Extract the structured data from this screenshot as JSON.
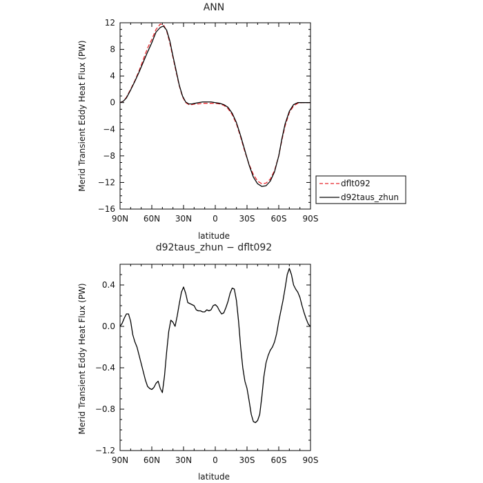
{
  "chart_data": [
    {
      "type": "line",
      "title": "ANN",
      "xlabel": "latitude",
      "ylabel": "Merid Transient Eddy Heat Flux (PW)",
      "xlim": [
        90,
        -90
      ],
      "ylim": [
        -16,
        12
      ],
      "x_ticks": [
        90,
        60,
        30,
        0,
        -30,
        -60,
        -90
      ],
      "x_tick_labels": [
        "90N",
        "60N",
        "30N",
        "0",
        "30S",
        "60S",
        "90S"
      ],
      "y_ticks": [
        -16,
        -12,
        -8,
        -4,
        0,
        4,
        8,
        12
      ],
      "y_tick_labels": [
        "−16",
        "−12",
        "−8",
        "−4",
        "0",
        "4",
        "8",
        "12"
      ],
      "grid": false,
      "legend_position": "outside-right",
      "series": [
        {
          "name": "dflt092",
          "color": "#e8262b",
          "dash": "dashed",
          "x": [
            90,
            87,
            84,
            80,
            76,
            72,
            68,
            64,
            60,
            56,
            52,
            49,
            46,
            43,
            40,
            37,
            34,
            31,
            28,
            25,
            22,
            19,
            16,
            12,
            8,
            4,
            0,
            -4,
            -8,
            -12,
            -16,
            -20,
            -24,
            -28,
            -32,
            -36,
            -40,
            -44,
            -48,
            -52,
            -56,
            -60,
            -63,
            -66,
            -70,
            -74,
            -78,
            -82,
            -86,
            -90
          ],
          "y": [
            0,
            0.2,
            0.8,
            2.0,
            3.3,
            4.8,
            6.5,
            8.2,
            9.5,
            11.0,
            11.8,
            11.7,
            10.8,
            9.0,
            6.8,
            4.6,
            2.5,
            0.9,
            0.0,
            -0.3,
            -0.3,
            -0.2,
            -0.2,
            -0.1,
            -0.1,
            -0.1,
            -0.1,
            -0.2,
            -0.4,
            -0.9,
            -1.8,
            -3.2,
            -5.2,
            -7.4,
            -9.3,
            -10.8,
            -11.8,
            -12.2,
            -12.1,
            -11.5,
            -10.2,
            -8.0,
            -5.6,
            -3.5,
            -1.5,
            -0.5,
            -0.1,
            0,
            0,
            0
          ]
        },
        {
          "name": "d92taus_zhun",
          "color": "#000000",
          "dash": "solid",
          "x": [
            90,
            87,
            84,
            80,
            76,
            72,
            68,
            64,
            60,
            56,
            52,
            49,
            46,
            43,
            40,
            37,
            34,
            31,
            28,
            25,
            22,
            19,
            16,
            12,
            8,
            4,
            0,
            -4,
            -8,
            -12,
            -16,
            -20,
            -24,
            -28,
            -32,
            -36,
            -40,
            -44,
            -48,
            -52,
            -56,
            -60,
            -63,
            -66,
            -70,
            -74,
            -78,
            -82,
            -86,
            -90
          ],
          "y": [
            0,
            0.2,
            0.7,
            1.9,
            3.2,
            4.6,
            6.1,
            7.6,
            9.0,
            10.6,
            11.3,
            11.5,
            10.9,
            9.3,
            7.0,
            4.8,
            2.6,
            1.0,
            0.1,
            -0.2,
            -0.2,
            -0.1,
            0.0,
            0.1,
            0.1,
            0.1,
            0.0,
            -0.1,
            -0.3,
            -0.7,
            -1.6,
            -3.0,
            -5.0,
            -7.2,
            -9.4,
            -11.2,
            -12.2,
            -12.6,
            -12.5,
            -11.8,
            -10.4,
            -8.0,
            -5.4,
            -3.2,
            -1.3,
            -0.3,
            0,
            0,
            0,
            0
          ]
        }
      ]
    },
    {
      "type": "line",
      "title": "d92taus_zhun − dflt092",
      "xlabel": "latitude",
      "ylabel": "Merid Transient Eddy Heat Flux (PW)",
      "xlim": [
        90,
        -90
      ],
      "ylim": [
        -1.2,
        0.6
      ],
      "x_ticks": [
        90,
        60,
        30,
        0,
        -30,
        -60,
        -90
      ],
      "x_tick_labels": [
        "90N",
        "60N",
        "30N",
        "0",
        "30S",
        "60S",
        "90S"
      ],
      "y_ticks": [
        -1.2,
        -0.8,
        -0.4,
        0.0,
        0.4
      ],
      "y_tick_labels": [
        "−1.2",
        "−0.8",
        "−0.4",
        "0.0",
        "0.4"
      ],
      "grid": false,
      "series": [
        {
          "color": "#000000",
          "dash": "solid",
          "x": [
            90,
            88,
            86,
            84,
            82,
            80,
            78,
            76,
            74,
            72,
            70,
            68,
            66,
            64,
            62,
            60,
            58,
            56,
            54,
            52,
            50,
            48,
            46,
            44,
            42,
            40,
            38,
            36,
            34,
            32,
            30,
            28,
            26,
            24,
            22,
            20,
            18,
            16,
            14,
            12,
            10,
            8,
            6,
            4,
            2,
            0,
            -2,
            -4,
            -6,
            -8,
            -10,
            -12,
            -14,
            -16,
            -18,
            -20,
            -22,
            -24,
            -26,
            -28,
            -30,
            -32,
            -34,
            -36,
            -38,
            -40,
            -42,
            -44,
            -46,
            -48,
            -50,
            -52,
            -54,
            -56,
            -58,
            -60,
            -62,
            -64,
            -66,
            -68,
            -70,
            -72,
            -74,
            -76,
            -78,
            -80,
            -82,
            -84,
            -86,
            -88,
            -90
          ],
          "y": [
            0.0,
            0.03,
            0.08,
            0.12,
            0.12,
            0.05,
            -0.08,
            -0.15,
            -0.2,
            -0.28,
            -0.36,
            -0.44,
            -0.52,
            -0.58,
            -0.6,
            -0.61,
            -0.59,
            -0.55,
            -0.53,
            -0.6,
            -0.64,
            -0.48,
            -0.25,
            -0.05,
            0.06,
            0.04,
            0.0,
            0.1,
            0.22,
            0.33,
            0.38,
            0.32,
            0.23,
            0.22,
            0.21,
            0.2,
            0.16,
            0.15,
            0.15,
            0.14,
            0.14,
            0.16,
            0.15,
            0.16,
            0.2,
            0.21,
            0.19,
            0.15,
            0.12,
            0.13,
            0.18,
            0.24,
            0.32,
            0.37,
            0.36,
            0.25,
            0.05,
            -0.2,
            -0.4,
            -0.53,
            -0.6,
            -0.72,
            -0.85,
            -0.92,
            -0.93,
            -0.91,
            -0.85,
            -0.68,
            -0.48,
            -0.35,
            -0.28,
            -0.23,
            -0.2,
            -0.15,
            -0.07,
            0.05,
            0.15,
            0.25,
            0.37,
            0.5,
            0.56,
            0.5,
            0.4,
            0.36,
            0.33,
            0.28,
            0.2,
            0.13,
            0.07,
            0.02,
            0.0
          ]
        }
      ]
    }
  ]
}
